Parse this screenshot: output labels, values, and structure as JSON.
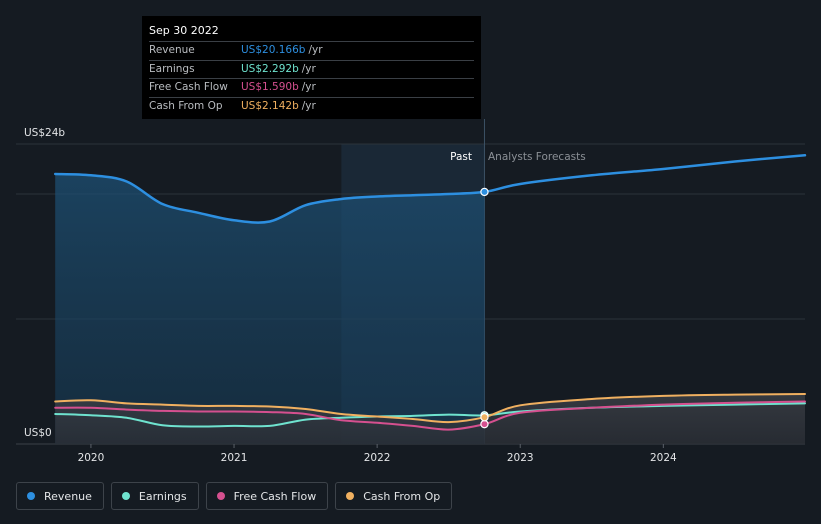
{
  "tooltip": {
    "date": "Sep 30 2022",
    "unit": "/yr",
    "rows": [
      {
        "label": "Revenue",
        "value": "US$20.166b",
        "color": "#2d8fe0"
      },
      {
        "label": "Earnings",
        "value": "US$2.292b",
        "color": "#6fe3cf"
      },
      {
        "label": "Free Cash Flow",
        "value": "US$1.590b",
        "color": "#d5508f"
      },
      {
        "label": "Cash From Op",
        "value": "US$2.142b",
        "color": "#f0b060"
      }
    ]
  },
  "sections": {
    "past": "Past",
    "forecast": "Analysts Forecasts"
  },
  "legend": [
    {
      "label": "Revenue",
      "color": "#2d8fe0"
    },
    {
      "label": "Earnings",
      "color": "#6fe3cf"
    },
    {
      "label": "Free Cash Flow",
      "color": "#d5508f"
    },
    {
      "label": "Cash From Op",
      "color": "#f0b060"
    }
  ],
  "chart_data": {
    "type": "line",
    "ylim": [
      0,
      24
    ],
    "y_tick_labels": [
      {
        "value": 24,
        "label": "US$24b"
      },
      {
        "value": 0,
        "label": "US$0"
      }
    ],
    "xlim": [
      2019.7,
      2024.99
    ],
    "x_tick_labels": [
      {
        "value": 2020,
        "label": "2020"
      },
      {
        "value": 2021,
        "label": "2021"
      },
      {
        "value": 2022,
        "label": "2022"
      },
      {
        "value": 2023,
        "label": "2023"
      },
      {
        "value": 2024,
        "label": "2024"
      }
    ],
    "past_end": 2022.75,
    "shaded_from": 2021.75,
    "highlight_x": 2022.75,
    "series": [
      {
        "name": "Revenue",
        "color": "#2d8fe0",
        "points": [
          [
            2019.75,
            21.6
          ],
          [
            2020.0,
            21.5
          ],
          [
            2020.25,
            21.0
          ],
          [
            2020.5,
            19.2
          ],
          [
            2020.75,
            18.5
          ],
          [
            2021.0,
            17.9
          ],
          [
            2021.25,
            17.8
          ],
          [
            2021.5,
            19.1
          ],
          [
            2021.75,
            19.6
          ],
          [
            2022.0,
            19.8
          ],
          [
            2022.25,
            19.9
          ],
          [
            2022.5,
            20.0
          ],
          [
            2022.75,
            20.166
          ],
          [
            2023.0,
            20.8
          ],
          [
            2023.5,
            21.5
          ],
          [
            2024.0,
            22.0
          ],
          [
            2024.5,
            22.6
          ],
          [
            2024.99,
            23.1
          ]
        ]
      },
      {
        "name": "Earnings",
        "color": "#6fe3cf",
        "points": [
          [
            2019.75,
            2.4
          ],
          [
            2020.0,
            2.3
          ],
          [
            2020.25,
            2.1
          ],
          [
            2020.5,
            1.5
          ],
          [
            2020.75,
            1.4
          ],
          [
            2021.0,
            1.45
          ],
          [
            2021.25,
            1.45
          ],
          [
            2021.5,
            1.95
          ],
          [
            2021.75,
            2.1
          ],
          [
            2022.0,
            2.2
          ],
          [
            2022.25,
            2.25
          ],
          [
            2022.5,
            2.35
          ],
          [
            2022.75,
            2.292
          ],
          [
            2023.0,
            2.6
          ],
          [
            2023.5,
            2.9
          ],
          [
            2024.0,
            3.05
          ],
          [
            2024.5,
            3.15
          ],
          [
            2024.99,
            3.25
          ]
        ]
      },
      {
        "name": "Free Cash Flow",
        "color": "#d5508f",
        "points": [
          [
            2019.75,
            2.9
          ],
          [
            2020.0,
            2.9
          ],
          [
            2020.25,
            2.75
          ],
          [
            2020.5,
            2.65
          ],
          [
            2020.75,
            2.6
          ],
          [
            2021.0,
            2.6
          ],
          [
            2021.25,
            2.55
          ],
          [
            2021.5,
            2.4
          ],
          [
            2021.75,
            1.9
          ],
          [
            2022.0,
            1.7
          ],
          [
            2022.25,
            1.45
          ],
          [
            2022.5,
            1.15
          ],
          [
            2022.75,
            1.59
          ],
          [
            2023.0,
            2.5
          ],
          [
            2023.5,
            2.9
          ],
          [
            2024.0,
            3.15
          ],
          [
            2024.5,
            3.3
          ],
          [
            2024.99,
            3.4
          ]
        ]
      },
      {
        "name": "Cash From Op",
        "color": "#f0b060",
        "points": [
          [
            2019.75,
            3.4
          ],
          [
            2020.0,
            3.5
          ],
          [
            2020.25,
            3.25
          ],
          [
            2020.5,
            3.15
          ],
          [
            2020.75,
            3.05
          ],
          [
            2021.0,
            3.05
          ],
          [
            2021.25,
            3.0
          ],
          [
            2021.5,
            2.8
          ],
          [
            2021.75,
            2.4
          ],
          [
            2022.0,
            2.2
          ],
          [
            2022.25,
            2.0
          ],
          [
            2022.5,
            1.75
          ],
          [
            2022.75,
            2.142
          ],
          [
            2023.0,
            3.1
          ],
          [
            2023.5,
            3.6
          ],
          [
            2024.0,
            3.85
          ],
          [
            2024.5,
            3.95
          ],
          [
            2024.99,
            4.0
          ]
        ]
      }
    ]
  }
}
